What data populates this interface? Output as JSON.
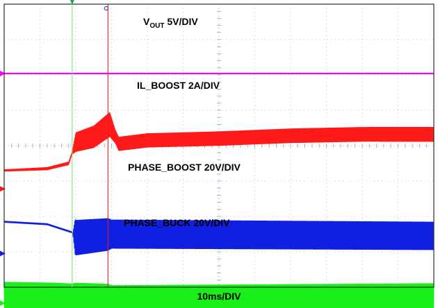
{
  "chart_data": {
    "type": "line",
    "title": "",
    "xlabel": "10ms/DIV",
    "x_unit": "ms",
    "x_divisions": 12,
    "x_per_div": 10,
    "y_divisions": 8,
    "grid": true,
    "cursors_x_div": [
      1.9,
      2.9
    ],
    "colors": {
      "grid": "#8aa2c8",
      "frame": "#2b2b2b",
      "vout": "#ff00ff",
      "il_boost": "#ff1a1a",
      "phase_boost": "#1020e0",
      "phase_buck": "#19ee19",
      "cursor_1": "#7fe07f",
      "cursor_2": "#e02020"
    },
    "series": [
      {
        "label_main": "V",
        "label_sub": "OUT",
        "label_rest": " 5V/DIV",
        "color": "vout",
        "points_div": [
          [
            0,
            1.96
          ],
          [
            12,
            1.96
          ]
        ],
        "ripple_div": 0
      },
      {
        "label_main": "IL_BOOST 2A/DIV",
        "color": "il_boost",
        "baseline_div": 5.22,
        "points_div": [
          [
            0,
            4.7
          ],
          [
            1.2,
            4.65
          ],
          [
            1.8,
            4.5
          ],
          [
            2.0,
            3.9
          ],
          [
            2.5,
            3.75
          ],
          [
            2.95,
            3.4
          ],
          [
            3.2,
            3.95
          ],
          [
            4,
            3.85
          ],
          [
            6,
            3.8
          ],
          [
            8,
            3.72
          ],
          [
            10,
            3.68
          ],
          [
            12,
            3.68
          ]
        ],
        "ripple_div": [
          [
            0,
            0.06
          ],
          [
            1.9,
            0.1
          ],
          [
            2.0,
            0.55
          ],
          [
            2.95,
            0.7
          ],
          [
            3.1,
            0.4
          ],
          [
            12,
            0.42
          ]
        ]
      },
      {
        "label_main": "PHASE_BOOST 20V/DIV",
        "color": "phase_boost",
        "baseline_div": 7.05,
        "points_div": [
          [
            0,
            6.15
          ],
          [
            1.2,
            6.22
          ],
          [
            1.9,
            6.45
          ],
          [
            2.0,
            6.6
          ],
          [
            3,
            6.5
          ],
          [
            12,
            6.55
          ]
        ],
        "ripple_div": [
          [
            0,
            0.05
          ],
          [
            1.92,
            0.05
          ],
          [
            1.98,
            1.0
          ],
          [
            2.9,
            0.92
          ],
          [
            3.0,
            0.82
          ],
          [
            12,
            0.8
          ]
        ]
      },
      {
        "label_main": "PHASE_BUCK 20V/DIV",
        "color": "phase_buck",
        "baseline_div": 8.45,
        "points_div": [
          [
            0,
            8.3
          ],
          [
            1.9,
            8.3
          ],
          [
            2.0,
            8.4
          ],
          [
            12,
            8.35
          ]
        ],
        "ripple_div": [
          [
            0,
            0.9
          ],
          [
            1.5,
            0.85
          ],
          [
            1.9,
            0.8
          ],
          [
            2.0,
            1.05
          ],
          [
            2.9,
            0.98
          ],
          [
            3.0,
            0.9
          ],
          [
            12,
            0.92
          ]
        ]
      }
    ]
  }
}
